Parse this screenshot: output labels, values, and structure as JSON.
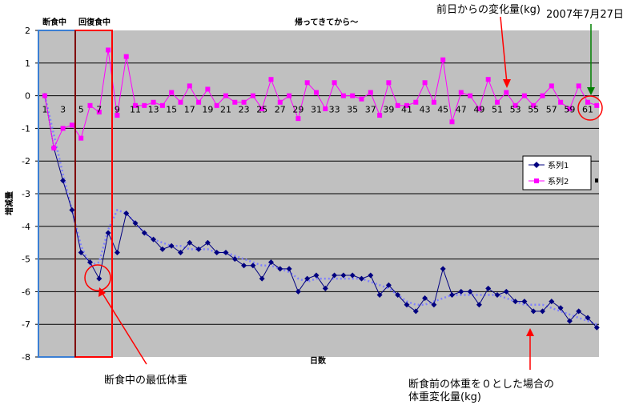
{
  "chart_data": {
    "type": "line",
    "title": "",
    "xlabel": "日数",
    "ylabel": "増減量",
    "ylim": [
      -8,
      2
    ],
    "y_ticks": [
      "2",
      "1",
      "0",
      "-1",
      "-2",
      "-3",
      "-4",
      "-5",
      "-6",
      "-7",
      "-8"
    ],
    "x_tick_labels": [
      "1",
      "3",
      "5",
      "7",
      "9",
      "11",
      "13",
      "15",
      "17",
      "19",
      "21",
      "23",
      "25",
      "27",
      "29",
      "31",
      "33",
      "35",
      "37",
      "39",
      "41",
      "43",
      "45",
      "47",
      "49",
      "51",
      "53",
      "55",
      "57",
      "59",
      "61"
    ],
    "x_label_axis_y": 0,
    "grid": true,
    "legend_position": "right",
    "colors": {
      "plot_bg": "#c0c0c0",
      "series1": "#000080",
      "series2": "#ff00ff",
      "trend": "#8080ff",
      "annotation_red": "#ff0000",
      "annotation_green": "#008000",
      "fasting_box": "#3b7fd4",
      "recovery_box": "#ff0000",
      "divider": "#800000"
    },
    "series": [
      {
        "name": "系列1",
        "values": [
          0,
          -1.6,
          -2.6,
          -3.5,
          -4.8,
          -5.1,
          -5.6,
          -4.2,
          -4.8,
          -3.6,
          -3.9,
          -4.2,
          -4.4,
          -4.7,
          -4.6,
          -4.8,
          -4.5,
          -4.7,
          -4.5,
          -4.8,
          -4.8,
          -5.0,
          -5.2,
          -5.2,
          -5.6,
          -5.1,
          -5.3,
          -5.3,
          -6.0,
          -5.6,
          -5.5,
          -5.9,
          -5.5,
          -5.5,
          -5.5,
          -5.6,
          -5.5,
          -6.1,
          -5.8,
          -6.1,
          -6.4,
          -6.6,
          -6.2,
          -6.4,
          -5.3,
          -6.1,
          -6.0,
          -6.0,
          -6.4,
          -5.9,
          -6.1,
          -6.0,
          -6.3,
          -6.3,
          -6.6,
          -6.6,
          -6.3,
          -6.5,
          -6.9,
          -6.6,
          -6.8,
          -7.1
        ]
      },
      {
        "name": "系列2",
        "values": [
          0,
          -1.6,
          -1.0,
          -0.9,
          -1.3,
          -0.3,
          -0.5,
          1.4,
          -0.6,
          1.2,
          -0.3,
          -0.3,
          -0.2,
          -0.3,
          0.1,
          -0.2,
          0.3,
          -0.2,
          0.2,
          -0.3,
          0.0,
          -0.2,
          -0.2,
          0.0,
          -0.4,
          0.5,
          -0.2,
          0.0,
          -0.7,
          0.4,
          0.1,
          -0.4,
          0.4,
          0.0,
          0.0,
          -0.1,
          0.1,
          -0.6,
          0.4,
          -0.3,
          -0.3,
          -0.2,
          0.4,
          -0.2,
          1.1,
          -0.8,
          0.1,
          0.0,
          -0.4,
          0.5,
          -0.2,
          0.1,
          -0.3,
          0.0,
          -0.3,
          0.0,
          0.3,
          -0.2,
          -0.4,
          0.3,
          -0.2,
          -0.3
        ]
      }
    ],
    "trend_values": [
      0,
      -1.2,
      -2.4,
      -3.5,
      -4.6,
      -5.2,
      -5.1,
      -4.1,
      -3.5,
      -3.6,
      -3.9,
      -4.2,
      -4.4,
      -4.5,
      -4.6,
      -4.6,
      -4.7,
      -4.7,
      -4.7,
      -4.8,
      -4.8,
      -4.9,
      -5.0,
      -5.1,
      -5.2,
      -5.2,
      -5.3,
      -5.4,
      -5.6,
      -5.7,
      -5.6,
      -5.6,
      -5.6,
      -5.6,
      -5.6,
      -5.6,
      -5.7,
      -5.8,
      -5.9,
      -6.1,
      -6.3,
      -6.4,
      -6.4,
      -6.3,
      -6.2,
      -6.1,
      -6.1,
      -6.1,
      -6.1,
      -6.1,
      -6.1,
      -6.2,
      -6.3,
      -6.4,
      -6.4,
      -6.4,
      -6.5,
      -6.6,
      -6.7,
      -6.8,
      -6.9,
      -7.0
    ],
    "annotations": {
      "fasting_label": "断食中",
      "recovery_label": "回復食中",
      "after_return_label": "帰ってきてから〜",
      "daily_change_label": "前日からの変化量(kg)",
      "date_label": "2007年7月27日",
      "min_weight_label": "断食中の最低体重",
      "total_change_line1": "断食前の体重を０とした場合の",
      "total_change_line2": "体重変化量(kg)"
    }
  }
}
